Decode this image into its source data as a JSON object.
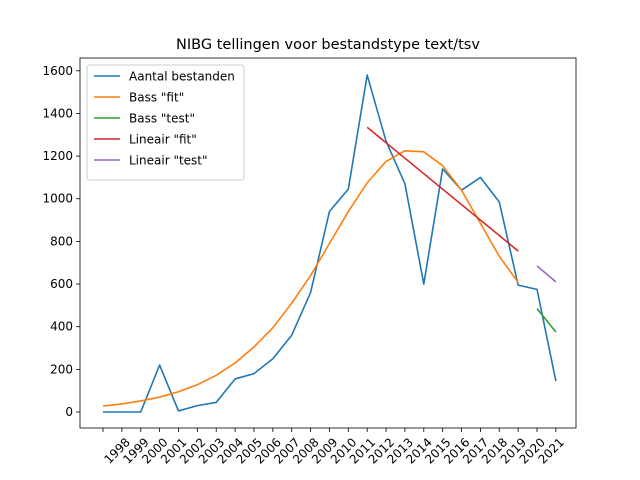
{
  "chart_data": {
    "type": "line",
    "title": "NIBG tellingen voor bestandstype text/tsv",
    "xlabel": "",
    "ylabel": "",
    "categories": [
      "1998",
      "1999",
      "2000",
      "2001",
      "2002",
      "2003",
      "2004",
      "2005",
      "2006",
      "2007",
      "2008",
      "2009",
      "2010",
      "2011",
      "2012",
      "2013",
      "2014",
      "2015",
      "2016",
      "2017",
      "2018",
      "2019",
      "2020",
      "2021"
    ],
    "yticks": [
      0,
      200,
      400,
      600,
      800,
      1000,
      1200,
      1400,
      1600
    ],
    "ylim": [
      -75,
      1660
    ],
    "grid": false,
    "legend_position": "top-left",
    "series": [
      {
        "name": "Aantal bestanden",
        "color": "#1f77b4",
        "points": [
          [
            "1998",
            0
          ],
          [
            "1999",
            0
          ],
          [
            "2000",
            0
          ],
          [
            "2001",
            220
          ],
          [
            "2002",
            5
          ],
          [
            "2003",
            30
          ],
          [
            "2004",
            45
          ],
          [
            "2005",
            155
          ],
          [
            "2006",
            180
          ],
          [
            "2007",
            250
          ],
          [
            "2008",
            360
          ],
          [
            "2009",
            560
          ],
          [
            "2010",
            940
          ],
          [
            "2011",
            1045
          ],
          [
            "2012",
            1580
          ],
          [
            "2013",
            1270
          ],
          [
            "2014",
            1070
          ],
          [
            "2015",
            600
          ],
          [
            "2016",
            1140
          ],
          [
            "2017",
            1040
          ],
          [
            "2018",
            1100
          ],
          [
            "2019",
            985
          ],
          [
            "2020",
            595
          ],
          [
            "2021",
            575
          ],
          [
            "2022",
            145
          ]
        ]
      },
      {
        "name": "Bass \"fit\"",
        "color": "#ff7f0e",
        "points": [
          [
            "1998",
            28
          ],
          [
            "1999",
            38
          ],
          [
            "2000",
            52
          ],
          [
            "2001",
            70
          ],
          [
            "2002",
            95
          ],
          [
            "2003",
            128
          ],
          [
            "2004",
            172
          ],
          [
            "2005",
            230
          ],
          [
            "2006",
            305
          ],
          [
            "2007",
            395
          ],
          [
            "2008",
            510
          ],
          [
            "2009",
            640
          ],
          [
            "2010",
            790
          ],
          [
            "2011",
            940
          ],
          [
            "2012",
            1075
          ],
          [
            "2013",
            1175
          ],
          [
            "2014",
            1225
          ],
          [
            "2015",
            1220
          ],
          [
            "2016",
            1155
          ],
          [
            "2017",
            1040
          ],
          [
            "2018",
            885
          ],
          [
            "2019",
            730
          ],
          [
            "2020",
            608
          ]
        ]
      },
      {
        "name": "Bass \"test\"",
        "color": "#2ca02c",
        "points": [
          [
            "2021",
            485
          ],
          [
            "2022",
            375
          ]
        ]
      },
      {
        "name": "Lineair \"fit\"",
        "color": "#d62728",
        "points": [
          [
            "2012",
            1335
          ],
          [
            "2020",
            755
          ]
        ]
      },
      {
        "name": "Lineair \"test\"",
        "color": "#9467bd",
        "points": [
          [
            "2021",
            685
          ],
          [
            "2022",
            610
          ]
        ]
      }
    ]
  }
}
